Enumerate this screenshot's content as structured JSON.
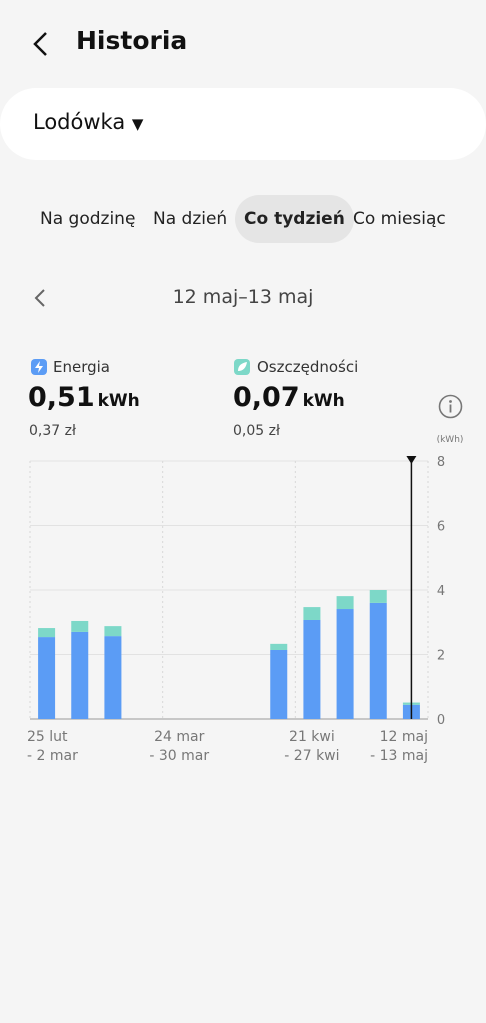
{
  "header": {
    "title": "Historia"
  },
  "device": {
    "name": "Lodówka"
  },
  "tabs": [
    "Na godzinę",
    "Na dzień",
    "Co tydzień",
    "Co miesiąc"
  ],
  "period": {
    "label": "12 maj–13 maj"
  },
  "summary": {
    "energy": {
      "value": "0,51",
      "unit": "kWh",
      "cost": "0,37 zł"
    },
    "savings": {
      "value": "0,07",
      "unit": "kWh",
      "cost": "0,05 zł"
    }
  },
  "chart_data": {
    "type": "stacked-bar",
    "y_label": "(kWh)",
    "categories": [
      "25 lut\n- 2 mar",
      null,
      null,
      null,
      "24 mar\n- 30 mar",
      null,
      null,
      null,
      "21 kwi\n- 27 kwi",
      null,
      null,
      "12 maj\n- 13 maj"
    ],
    "series": [
      {
        "name": "Energia",
        "color": "#5b9cf5",
        "values": [
          2.54,
          2.7,
          2.57,
          null,
          null,
          null,
          null,
          2.14,
          3.07,
          3.41,
          3.6,
          0.44
        ]
      },
      {
        "name": "Oszczędności",
        "color": "#7dd8c8",
        "values": [
          0.28,
          0.34,
          0.31,
          null,
          null,
          null,
          null,
          0.19,
          0.4,
          0.4,
          0.4,
          0.07
        ]
      }
    ],
    "ylim": [
      0,
      8
    ],
    "yticks": [
      0,
      2,
      4,
      6,
      8
    ],
    "grid": true
  }
}
